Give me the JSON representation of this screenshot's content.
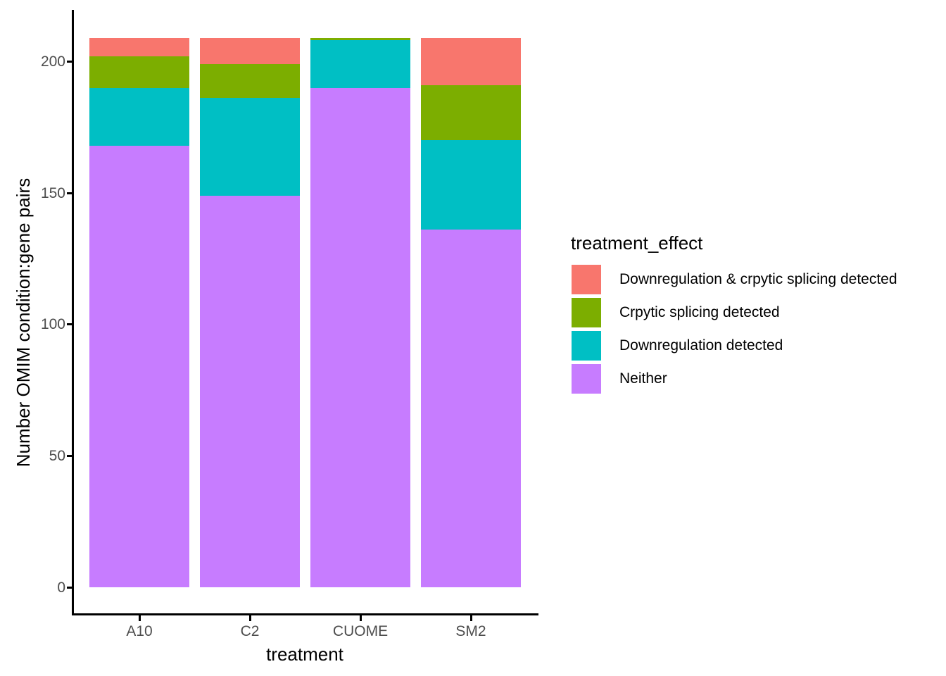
{
  "chart_data": {
    "type": "bar",
    "stacked": true,
    "orientation": "vertical",
    "title": "",
    "xlabel": "treatment",
    "ylabel": "Number OMIM condition:gene pairs",
    "categories": [
      "A10",
      "C2",
      "CUOME",
      "SM2"
    ],
    "series": [
      {
        "name": "Downregulation & crpytic splicing detected",
        "color": "#F8766D",
        "values": [
          7,
          10,
          0,
          18
        ]
      },
      {
        "name": "Crpytic splicing detected",
        "color": "#7CAE00",
        "values": [
          12,
          13,
          1,
          21
        ]
      },
      {
        "name": "Downregulation detected",
        "color": "#00BFC4",
        "values": [
          22,
          37,
          18,
          34
        ]
      },
      {
        "name": "Neither",
        "color": "#C77CFF",
        "values": [
          168,
          149,
          190,
          136
        ]
      }
    ],
    "bar_totals": [
      209,
      209,
      209,
      209
    ],
    "y_ticks": [
      "0",
      "50",
      "100",
      "150",
      "200"
    ],
    "y_tick_values": [
      0,
      50,
      100,
      150,
      200
    ],
    "ylim": [
      0,
      209
    ],
    "grid": false,
    "background": "#ffffff",
    "axis_color": "#000000",
    "tick_label_color": "#4D4D4D",
    "legend": {
      "title": "treatment_effect",
      "position": "right"
    }
  }
}
